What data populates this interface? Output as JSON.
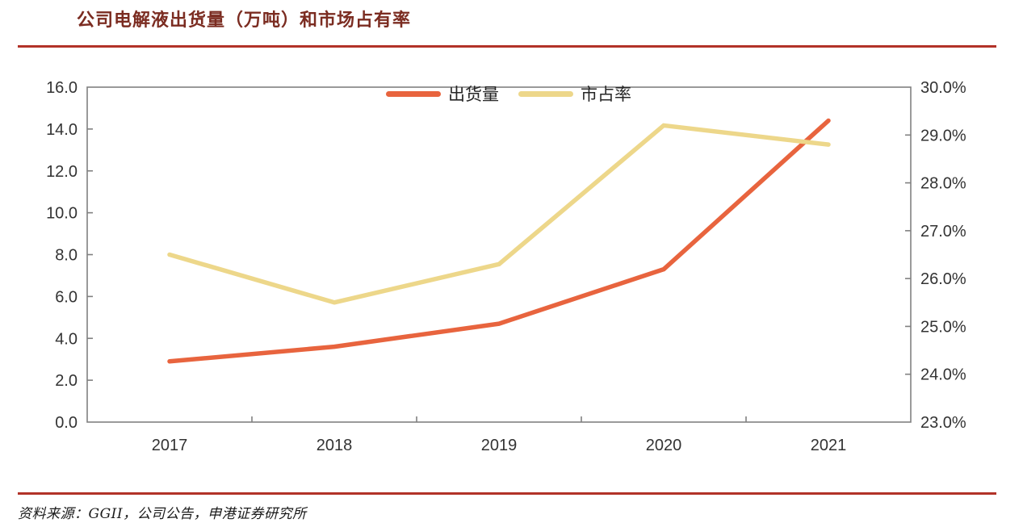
{
  "title": "公司电解液出货量（万吨）和市场占有率",
  "source_note": "资料来源：GGII，公司公告，申港证券研究所",
  "colors": {
    "title_text": "#7B2C21",
    "rule_red": "#B23228",
    "axis_line": "#808080",
    "tick_label": "#333333",
    "legend_label": "#262626",
    "shipment_line": "#E8643E",
    "share_line": "#EDD78A"
  },
  "chart_data": {
    "type": "line",
    "title": "公司电解液出货量（万吨）和市场占有率",
    "categories": [
      "2017",
      "2018",
      "2019",
      "2020",
      "2021"
    ],
    "series": [
      {
        "key": "shipment-volume",
        "name": "出货量",
        "axis": "left",
        "color": "#E8643E",
        "values": [
          2.9,
          3.6,
          4.7,
          7.3,
          14.4
        ]
      },
      {
        "key": "market-share",
        "name": "市占率",
        "axis": "right",
        "color": "#EDD78A",
        "unit": "%",
        "values": [
          26.5,
          25.5,
          26.3,
          29.2,
          28.8
        ]
      }
    ],
    "left_axis": {
      "min": 0,
      "max": 16,
      "step": 2,
      "tick_labels": [
        "0.0",
        "2.0",
        "4.0",
        "6.0",
        "8.0",
        "10.0",
        "12.0",
        "14.0",
        "16.0"
      ]
    },
    "right_axis": {
      "min": 23,
      "max": 30,
      "step": 1,
      "tick_labels": [
        "23.0%",
        "24.0%",
        "25.0%",
        "26.0%",
        "27.0%",
        "28.0%",
        "29.0%",
        "30.0%"
      ]
    },
    "legend_position": "top-center",
    "grid": false
  }
}
